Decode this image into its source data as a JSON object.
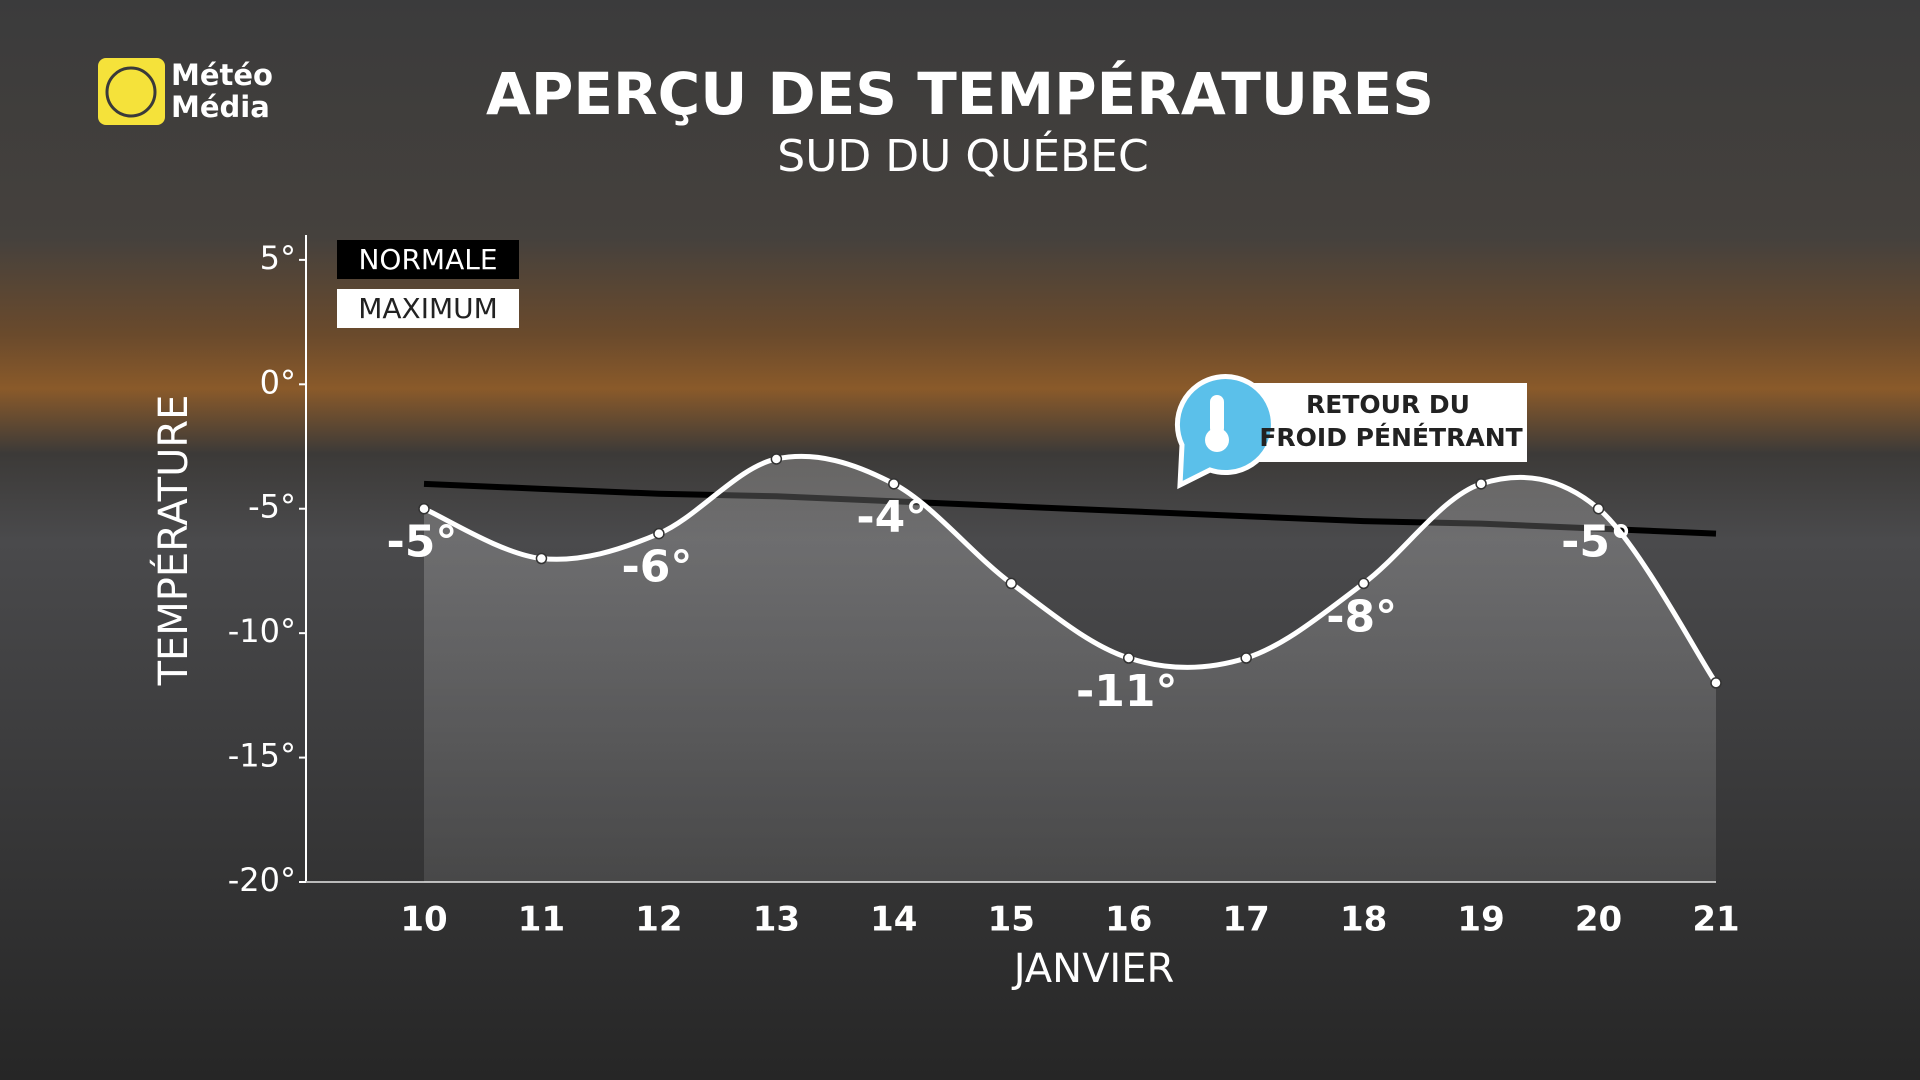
{
  "logo": [
    "Météo",
    "Média"
  ],
  "chart_data": {
    "type": "line",
    "title": "APERÇU DES TEMPÉRATURES",
    "subtitle": "SUD DU QUÉBEC",
    "y_label": "TEMPÉRATURE",
    "x_label": "JANVIER",
    "categories": [
      "10",
      "11",
      "12",
      "13",
      "14",
      "15",
      "16",
      "17",
      "18",
      "19",
      "20",
      "21"
    ],
    "series": [
      {
        "name": "NORMALE",
        "color": "#000000",
        "values": [
          -4,
          -4.2,
          -4.4,
          -4.5,
          -4.7,
          -4.9,
          -5.1,
          -5.3,
          -5.5,
          -5.6,
          -5.8,
          -6
        ]
      },
      {
        "name": "MAXIMUM",
        "color": "#ffffff",
        "values": [
          -5,
          -7,
          -6,
          -3,
          -4,
          -8,
          -11,
          -11,
          -8,
          -4,
          -5,
          -12
        ],
        "value_labels": [
          "-5°",
          null,
          "-6°",
          null,
          "-4°",
          null,
          "-11°",
          null,
          "-8°",
          null,
          "-5°",
          null
        ]
      }
    ],
    "ylim": [
      -20,
      6
    ],
    "yticks": [
      {
        "value": 5,
        "label": "5°"
      },
      {
        "value": 0,
        "label": "0°"
      },
      {
        "value": -5,
        "label": "-5°"
      },
      {
        "value": -10,
        "label": "-10°"
      },
      {
        "value": -15,
        "label": "-15°"
      },
      {
        "value": -20,
        "label": "-20°"
      }
    ],
    "annotation": [
      "RETOUR DU",
      "FROID PÉNÉTRANT"
    ]
  }
}
